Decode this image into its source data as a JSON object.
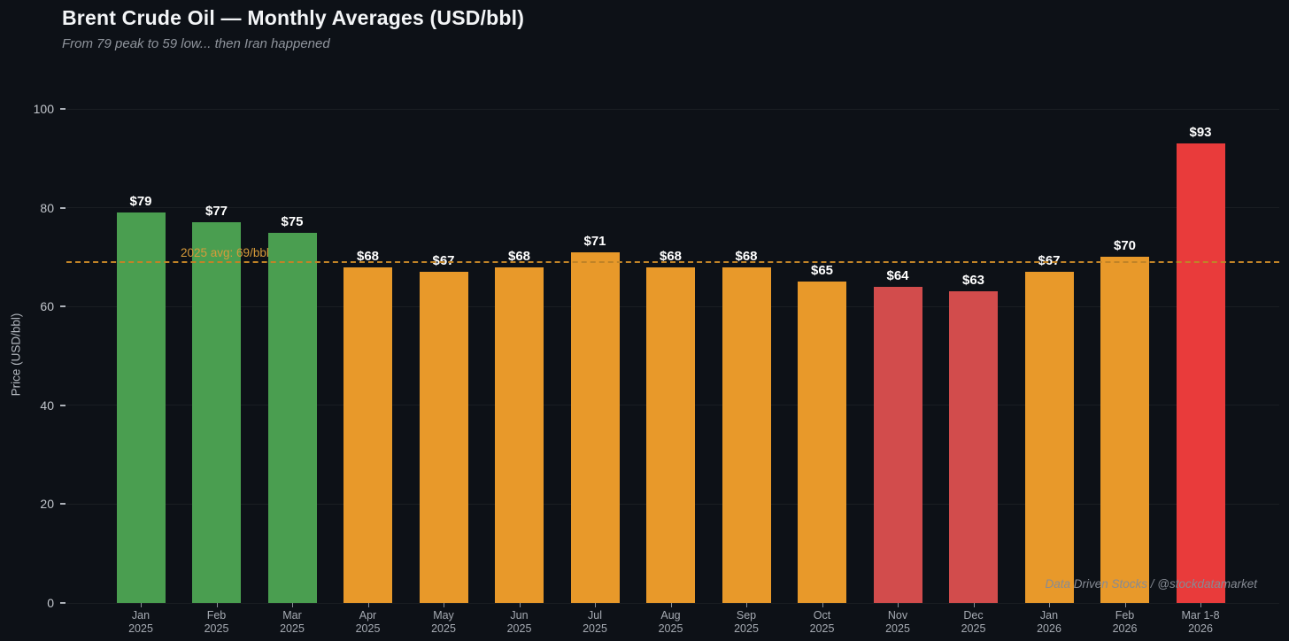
{
  "header": {
    "title": "Brent Crude Oil — Monthly Averages (USD/bbl)",
    "subtitle": "From 79 peak to 59 low... then Iran happened"
  },
  "watermark": "Data Driven Stocks / @stockdatamarket",
  "colors": {
    "background": "#0d1117",
    "green": "#4a9e50",
    "orange": "#e8992a",
    "red": "#d24c4c",
    "bright_red": "#e93b3b",
    "avg_line": "#c08327",
    "avg_label": "#d79b3a",
    "value_label": "#ffffff"
  },
  "chart_data": {
    "type": "bar",
    "title": "Brent Crude Oil — Monthly Averages (USD/bbl)",
    "subtitle": "From 79 peak to 59 low... then Iran happened",
    "xlabel": "",
    "ylabel": "Price (USD/bbl)",
    "ylim": [
      0,
      100
    ],
    "yticks": [
      0,
      20,
      40,
      60,
      80,
      100
    ],
    "grid": true,
    "legend": false,
    "categories": [
      [
        "Jan",
        "2025"
      ],
      [
        "Feb",
        "2025"
      ],
      [
        "Mar",
        "2025"
      ],
      [
        "Apr",
        "2025"
      ],
      [
        "May",
        "2025"
      ],
      [
        "Jun",
        "2025"
      ],
      [
        "Jul",
        "2025"
      ],
      [
        "Aug",
        "2025"
      ],
      [
        "Sep",
        "2025"
      ],
      [
        "Oct",
        "2025"
      ],
      [
        "Nov",
        "2025"
      ],
      [
        "Dec",
        "2025"
      ],
      [
        "Jan",
        "2026"
      ],
      [
        "Feb",
        "2026"
      ],
      [
        "Mar 1-8",
        "2026"
      ]
    ],
    "values": [
      79,
      77,
      75,
      68,
      67,
      68,
      71,
      68,
      68,
      65,
      64,
      63,
      67,
      70,
      93
    ],
    "bar_labels": [
      "$79",
      "$77",
      "$75",
      "$68",
      "$67",
      "$68",
      "$71",
      "$68",
      "$68",
      "$65",
      "$64",
      "$63",
      "$67",
      "$70",
      "$93"
    ],
    "bar_colors": [
      "green",
      "green",
      "green",
      "orange",
      "orange",
      "orange",
      "orange",
      "orange",
      "orange",
      "orange",
      "red",
      "red",
      "orange",
      "orange",
      "bright_red"
    ],
    "avg_line": {
      "value": 69,
      "label": "2025 avg: 69/bbl"
    }
  }
}
